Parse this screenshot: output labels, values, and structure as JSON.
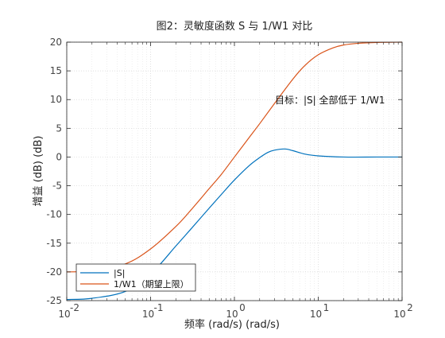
{
  "chart_data": {
    "type": "line",
    "title": "图2：灵敏度函数 S 与 1/W1 对比",
    "xlabel": "频率 (rad/s)  (rad/s)",
    "ylabel": "增益 (dB) (dB)",
    "xscale": "log",
    "xlim": [
      0.01,
      100
    ],
    "ylim": [
      -25,
      20
    ],
    "yticks": [
      -25,
      -20,
      -15,
      -10,
      -5,
      0,
      5,
      10,
      15,
      20
    ],
    "xtick_bases": [
      "10",
      "10",
      "10",
      "10",
      "10"
    ],
    "xtick_exps": [
      "-2",
      "-1",
      "0",
      "1",
      "2"
    ],
    "grid": true,
    "legend_position": "bottom-left",
    "annotation": "目标：|S| 全部低于 1/W1",
    "series": [
      {
        "name": "|S|",
        "color": "#0072BD",
        "x": [
          0.01,
          0.02,
          0.05,
          0.1,
          0.2,
          0.3,
          0.5,
          0.7,
          1,
          1.5,
          2,
          2.5,
          3,
          4,
          5,
          7,
          10,
          20,
          50,
          100
        ],
        "y": [
          -24.8,
          -24.6,
          -23.4,
          -20.4,
          -15.5,
          -12.6,
          -8.9,
          -6.5,
          -4.0,
          -1.5,
          -0.1,
          0.8,
          1.2,
          1.4,
          1.1,
          0.5,
          0.2,
          0.0,
          0.0,
          0.0
        ]
      },
      {
        "name": "1/W1（期望上限）",
        "color": "#D95319",
        "x": [
          0.01,
          0.02,
          0.05,
          0.1,
          0.2,
          0.3,
          0.5,
          0.7,
          1,
          1.5,
          2,
          3,
          5,
          7,
          10,
          15,
          20,
          30,
          50,
          100
        ],
        "y": [
          -20.0,
          -19.8,
          -18.6,
          -16.0,
          -12.1,
          -9.3,
          -5.5,
          -3.0,
          0.0,
          3.4,
          5.8,
          9.3,
          13.6,
          16.0,
          17.8,
          19.0,
          19.5,
          19.8,
          19.95,
          20.0
        ]
      }
    ]
  }
}
